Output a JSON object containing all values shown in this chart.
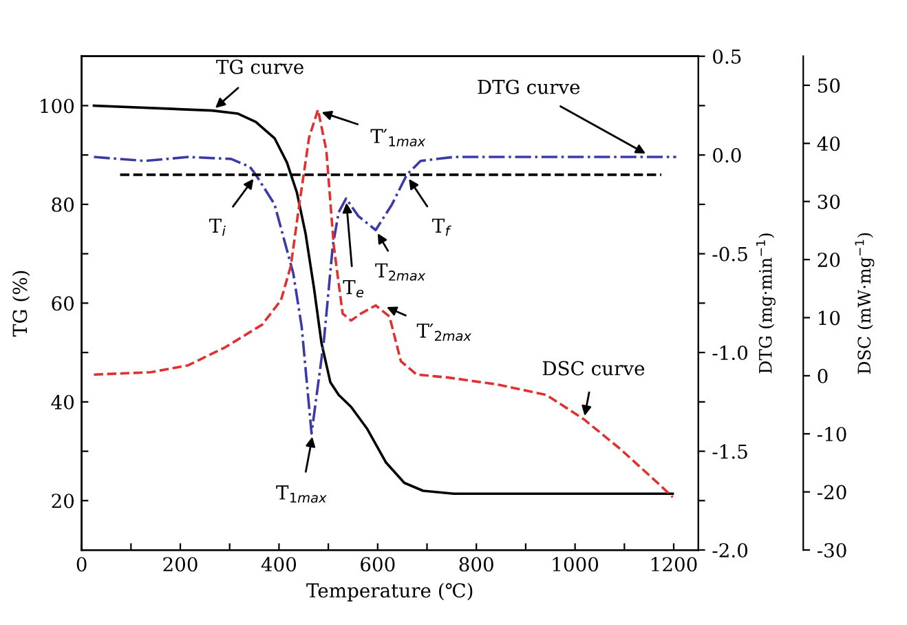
{
  "chart_data": {
    "type": "line",
    "xlabel": "Temperature (℃)",
    "ylabel": "TG (%)",
    "y2label": "DTG (mg·min$^{−1}$)",
    "y3label": "DSC (mW·mg$^{−1}$)",
    "xlim": [
      0,
      1250
    ],
    "xticks": [
      0,
      {
        "value": 100,
        "label": null
      },
      200,
      {
        "value": 300,
        "label": null
      },
      400,
      {
        "value": 500,
        "label": null
      },
      600,
      {
        "value": 700,
        "label": null
      },
      800,
      {
        "value": 900,
        "label": null
      },
      1000,
      {
        "value": 1100,
        "label": null
      },
      1200
    ],
    "ylim": [
      10,
      110
    ],
    "yticks": [
      20,
      {
        "value": 30,
        "label": null
      },
      40,
      {
        "value": 50,
        "label": null
      },
      60,
      {
        "value": 70,
        "label": null
      },
      80,
      {
        "value": 90,
        "label": null
      },
      100
    ],
    "y2lim": [
      -2.0,
      0.5
    ],
    "y2ticks": [
      {
        "value": -2.0,
        "label": "-2.0"
      },
      {
        "value": -1.75,
        "label": null
      },
      {
        "value": -1.5,
        "label": "-1.5"
      },
      {
        "value": -1.25,
        "label": null
      },
      {
        "value": -1.0,
        "label": "-1.0"
      },
      {
        "value": -0.75,
        "label": null
      },
      {
        "value": -0.5,
        "label": "-0.5"
      },
      {
        "value": -0.25,
        "label": null
      },
      {
        "value": 0.0,
        "label": "0.0"
      },
      {
        "value": 0.25,
        "label": null
      },
      {
        "value": 0.5,
        "label": "0.5"
      }
    ],
    "y3lim": [
      -30,
      55
    ],
    "y3ticks": [
      -30,
      -20,
      -10,
      0,
      10,
      20,
      30,
      40,
      50
    ],
    "grid": false,
    "legend": false,
    "series": [
      {
        "color": "#000000",
        "line_style": "solid",
        "x": [
          25,
          265,
          316,
          353,
          391,
          416,
          436,
          454,
          471,
          486,
          504,
          521,
          546,
          579,
          617,
          654,
          692,
          754,
          900,
          1050,
          1198
        ],
        "values": [
          100,
          99,
          98.4,
          96.7,
          93.4,
          88.5,
          82.5,
          74,
          63,
          52,
          44,
          41.4,
          39,
          34.5,
          27.7,
          23.6,
          22,
          21.4,
          21.4,
          21.4,
          21.4
        ]
      },
      {
        "axis": "y2",
        "color": "#3a3aa8",
        "line_style": "dashdot",
        "x": [
          25,
          128,
          216,
          303,
          341,
          353,
          391,
          429,
          446,
          466,
          491,
          509,
          521,
          536,
          561,
          596,
          629,
          659,
          687,
          754,
          900,
          1050,
          1150,
          1205
        ],
        "values": [
          -0.01,
          -0.03,
          -0.01,
          -0.02,
          -0.06,
          -0.1,
          -0.25,
          -0.6,
          -0.87,
          -1.41,
          -0.94,
          -0.46,
          -0.29,
          -0.22,
          -0.31,
          -0.38,
          -0.25,
          -0.1,
          -0.03,
          -0.01,
          -0.01,
          -0.01,
          -0.01,
          -0.01
        ]
      },
      {
        "axis": "y2",
        "color": "#000000",
        "line_style": "dashed",
        "x": [
          78,
          1175
        ],
        "values": [
          -0.1,
          -0.1
        ]
      },
      {
        "axis": "y3",
        "color": "#e03030",
        "line_style": "dashed",
        "x": [
          25,
          140,
          216,
          291,
          366,
          404,
          424,
          441,
          461,
          479,
          496,
          511,
          529,
          546,
          566,
          596,
          624,
          647,
          679,
          742,
          842,
          942,
          1018,
          1093,
          1168,
          1198
        ],
        "values": [
          0.2,
          0.6,
          1.8,
          4.9,
          8.8,
          13,
          18.9,
          29.4,
          41,
          45.8,
          38.8,
          22.4,
          10.7,
          9.5,
          10.7,
          12.1,
          10.2,
          2.5,
          0.2,
          -0.3,
          -1.5,
          -3.3,
          -7.5,
          -12.7,
          -18.5,
          -20.9
        ]
      }
    ],
    "annotations": [
      {
        "text": "TG curve",
        "x": 265,
        "y": 99
      },
      {
        "text": "T′$_{1max}$",
        "x": 479,
        "y": 98.9
      },
      {
        "text": "DTG curve",
        "x": 1150,
        "y": 89.9
      },
      {
        "text": "T$_{i}$",
        "x": 353,
        "y": 85.8
      },
      {
        "text": "T$_{e}$",
        "x": 536,
        "y": 81.1
      },
      {
        "text": "T$_{2max}$",
        "x": 596,
        "y": 74.8
      },
      {
        "text": "T$_{f}$",
        "x": 659,
        "y": 85.8
      },
      {
        "text": "T′$_{2max}$",
        "x": 611,
        "y": 59.5
      },
      {
        "text": "T$_{1max}$",
        "x": 469,
        "y": 33.7
      },
      {
        "text": "DSC curve",
        "x": 1018,
        "y": 36.4
      }
    ]
  }
}
